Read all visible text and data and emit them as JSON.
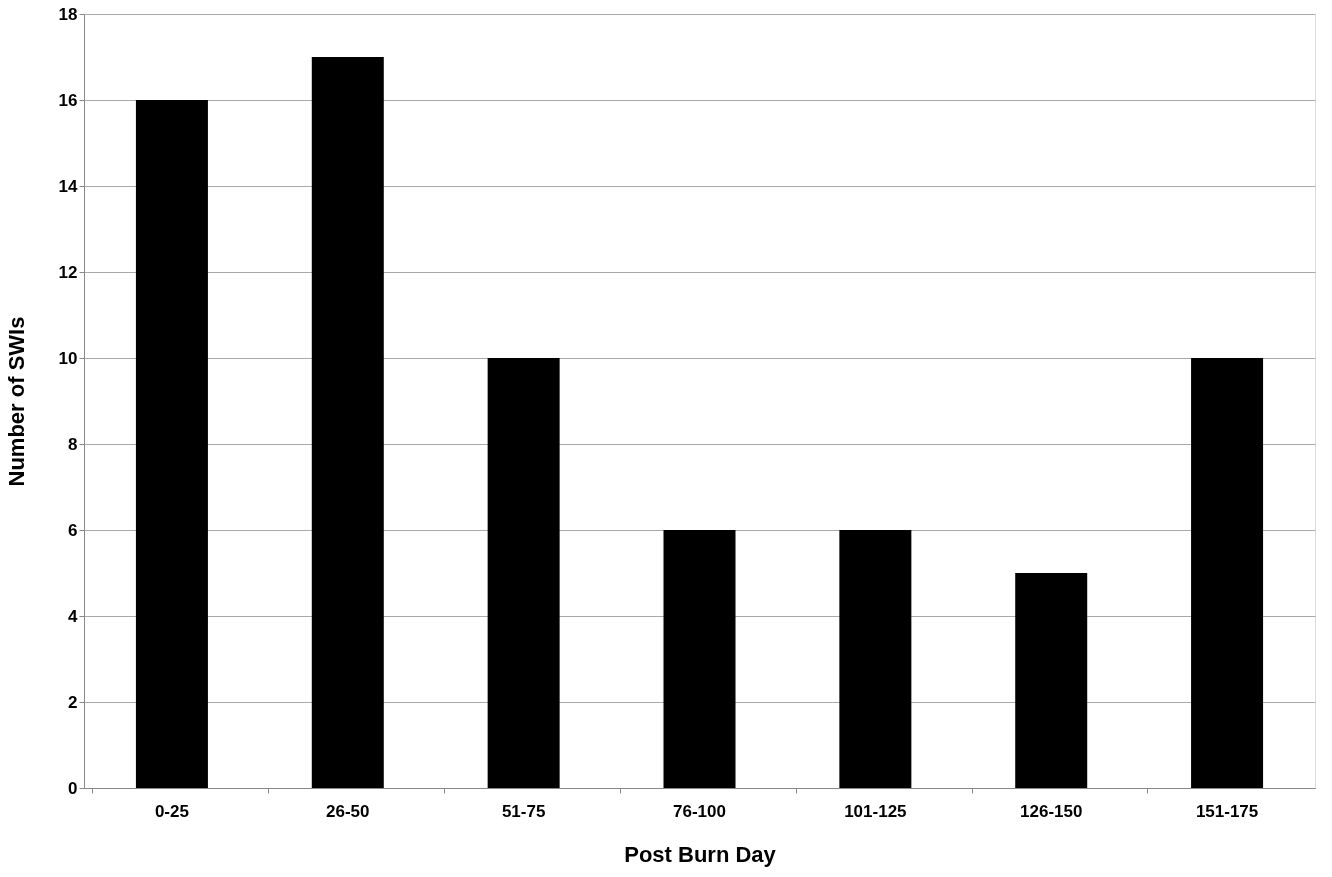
{
  "chart_data": {
    "type": "bar",
    "xlabel": "Post Burn Day",
    "ylabel": "Number of SWIs",
    "categories": [
      "0-25",
      "26-50",
      "51-75",
      "76-100",
      "101-125",
      "126-150",
      "151-175"
    ],
    "values": [
      16,
      17,
      10,
      6,
      6,
      5,
      10
    ],
    "color": "#000000",
    "ylim": [
      0,
      18
    ],
    "yticks": [
      0,
      2,
      4,
      6,
      8,
      10,
      12,
      14,
      16,
      18
    ],
    "grid": "y"
  }
}
